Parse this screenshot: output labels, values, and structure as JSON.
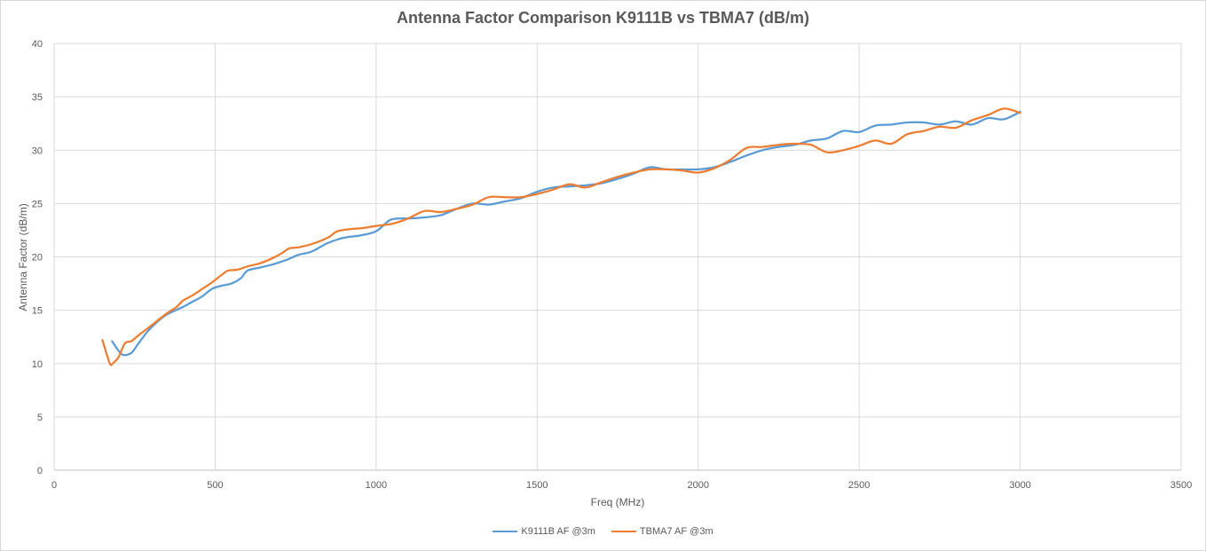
{
  "chart_data": {
    "type": "line",
    "title": "Antenna Factor Comparison K9111B vs TBMA7 (dB/m)",
    "xlabel": "Freq (MHz)",
    "ylabel": "Antenna Factor (dB/m)",
    "xlim": [
      0,
      3500
    ],
    "ylim": [
      0,
      40
    ],
    "x_ticks": [
      "0",
      "500",
      "1000",
      "1500",
      "2000",
      "2500",
      "3000",
      "3500"
    ],
    "y_ticks": [
      "0",
      "5",
      "10",
      "15",
      "20",
      "25",
      "30",
      "35",
      "40"
    ],
    "grid": true,
    "legend_position": "bottom",
    "series": [
      {
        "name": "K9111B AF @3m",
        "color": "#5b9bd5",
        "points": [
          [
            180,
            12.1
          ],
          [
            200,
            11.2
          ],
          [
            215,
            10.8
          ],
          [
            240,
            11.0
          ],
          [
            260,
            11.8
          ],
          [
            290,
            13.0
          ],
          [
            320,
            13.9
          ],
          [
            350,
            14.6
          ],
          [
            400,
            15.3
          ],
          [
            430,
            15.8
          ],
          [
            460,
            16.3
          ],
          [
            490,
            17.0
          ],
          [
            520,
            17.3
          ],
          [
            550,
            17.5
          ],
          [
            580,
            18.0
          ],
          [
            600,
            18.7
          ],
          [
            640,
            19.0
          ],
          [
            680,
            19.3
          ],
          [
            720,
            19.7
          ],
          [
            760,
            20.2
          ],
          [
            800,
            20.5
          ],
          [
            850,
            21.3
          ],
          [
            900,
            21.8
          ],
          [
            950,
            22.0
          ],
          [
            1000,
            22.4
          ],
          [
            1040,
            23.4
          ],
          [
            1070,
            23.6
          ],
          [
            1100,
            23.6
          ],
          [
            1150,
            23.7
          ],
          [
            1200,
            23.9
          ],
          [
            1250,
            24.5
          ],
          [
            1300,
            25.0
          ],
          [
            1350,
            24.9
          ],
          [
            1400,
            25.2
          ],
          [
            1450,
            25.5
          ],
          [
            1500,
            26.1
          ],
          [
            1550,
            26.5
          ],
          [
            1600,
            26.6
          ],
          [
            1650,
            26.7
          ],
          [
            1700,
            26.9
          ],
          [
            1750,
            27.3
          ],
          [
            1800,
            27.8
          ],
          [
            1850,
            28.4
          ],
          [
            1900,
            28.2
          ],
          [
            1950,
            28.2
          ],
          [
            2000,
            28.2
          ],
          [
            2050,
            28.4
          ],
          [
            2100,
            28.9
          ],
          [
            2150,
            29.5
          ],
          [
            2200,
            30.0
          ],
          [
            2250,
            30.3
          ],
          [
            2300,
            30.5
          ],
          [
            2350,
            30.9
          ],
          [
            2400,
            31.1
          ],
          [
            2450,
            31.8
          ],
          [
            2500,
            31.7
          ],
          [
            2550,
            32.3
          ],
          [
            2600,
            32.4
          ],
          [
            2650,
            32.6
          ],
          [
            2700,
            32.6
          ],
          [
            2750,
            32.4
          ],
          [
            2800,
            32.7
          ],
          [
            2850,
            32.4
          ],
          [
            2900,
            33.0
          ],
          [
            2950,
            32.9
          ],
          [
            3000,
            33.6
          ]
        ]
      },
      {
        "name": "TBMA7 AF @3m",
        "color": "#ed7d31",
        "points": [
          [
            150,
            12.2
          ],
          [
            165,
            10.7
          ],
          [
            175,
            9.9
          ],
          [
            185,
            10.1
          ],
          [
            200,
            10.6
          ],
          [
            220,
            11.9
          ],
          [
            240,
            12.1
          ],
          [
            260,
            12.6
          ],
          [
            290,
            13.3
          ],
          [
            320,
            14.0
          ],
          [
            350,
            14.7
          ],
          [
            380,
            15.3
          ],
          [
            400,
            15.9
          ],
          [
            430,
            16.4
          ],
          [
            460,
            17.0
          ],
          [
            490,
            17.6
          ],
          [
            520,
            18.3
          ],
          [
            540,
            18.7
          ],
          [
            570,
            18.8
          ],
          [
            600,
            19.1
          ],
          [
            640,
            19.4
          ],
          [
            680,
            19.9
          ],
          [
            710,
            20.4
          ],
          [
            730,
            20.8
          ],
          [
            760,
            20.9
          ],
          [
            800,
            21.2
          ],
          [
            850,
            21.8
          ],
          [
            880,
            22.4
          ],
          [
            920,
            22.6
          ],
          [
            960,
            22.7
          ],
          [
            1000,
            22.9
          ],
          [
            1050,
            23.1
          ],
          [
            1100,
            23.6
          ],
          [
            1150,
            24.3
          ],
          [
            1200,
            24.2
          ],
          [
            1250,
            24.5
          ],
          [
            1300,
            24.9
          ],
          [
            1350,
            25.6
          ],
          [
            1400,
            25.6
          ],
          [
            1450,
            25.6
          ],
          [
            1500,
            25.9
          ],
          [
            1550,
            26.3
          ],
          [
            1600,
            26.8
          ],
          [
            1650,
            26.5
          ],
          [
            1700,
            27.0
          ],
          [
            1750,
            27.5
          ],
          [
            1800,
            27.9
          ],
          [
            1850,
            28.2
          ],
          [
            1900,
            28.2
          ],
          [
            1950,
            28.1
          ],
          [
            2000,
            27.9
          ],
          [
            2050,
            28.3
          ],
          [
            2100,
            29.1
          ],
          [
            2150,
            30.2
          ],
          [
            2200,
            30.3
          ],
          [
            2250,
            30.5
          ],
          [
            2300,
            30.6
          ],
          [
            2350,
            30.5
          ],
          [
            2400,
            29.8
          ],
          [
            2450,
            30.0
          ],
          [
            2500,
            30.4
          ],
          [
            2550,
            30.9
          ],
          [
            2600,
            30.6
          ],
          [
            2650,
            31.5
          ],
          [
            2700,
            31.8
          ],
          [
            2750,
            32.2
          ],
          [
            2800,
            32.1
          ],
          [
            2850,
            32.8
          ],
          [
            2900,
            33.3
          ],
          [
            2950,
            33.9
          ],
          [
            3000,
            33.5
          ]
        ]
      }
    ]
  }
}
